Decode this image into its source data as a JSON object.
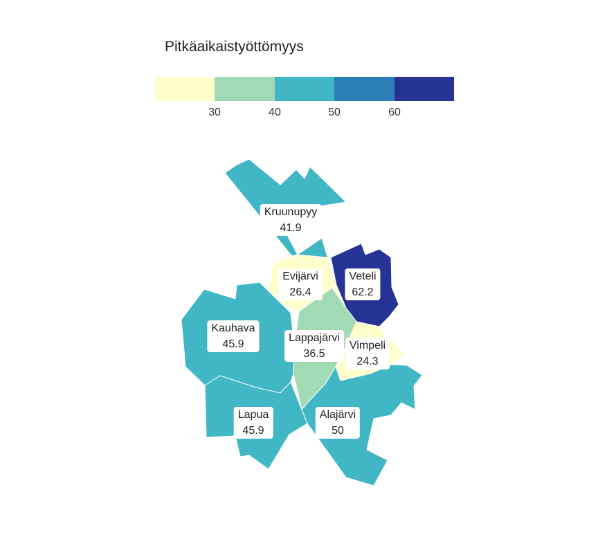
{
  "legend": {
    "title": "Pitkäaikaistyöttömyys",
    "colors": [
      "#ffffcc",
      "#a1dab4",
      "#41b6c4",
      "#2c7fb8",
      "#253494"
    ],
    "ticks": [
      "30",
      "40",
      "50",
      "60"
    ]
  },
  "regions": [
    {
      "name": "Kruunupyy",
      "value": "41.9",
      "color": "#41b6c4"
    },
    {
      "name": "Evijärvi",
      "value": "26.4",
      "color": "#ffffcc"
    },
    {
      "name": "Veteli",
      "value": "62.2",
      "color": "#253494"
    },
    {
      "name": "Kauhava",
      "value": "45.9",
      "color": "#41b6c4"
    },
    {
      "name": "Lappajärvi",
      "value": "36.5",
      "color": "#a1dab4"
    },
    {
      "name": "Vimpeli",
      "value": "24.3",
      "color": "#ffffcc"
    },
    {
      "name": "Lapua",
      "value": "45.9",
      "color": "#41b6c4"
    },
    {
      "name": "Alajärvi",
      "value": "50",
      "color": "#41b6c4"
    }
  ]
}
